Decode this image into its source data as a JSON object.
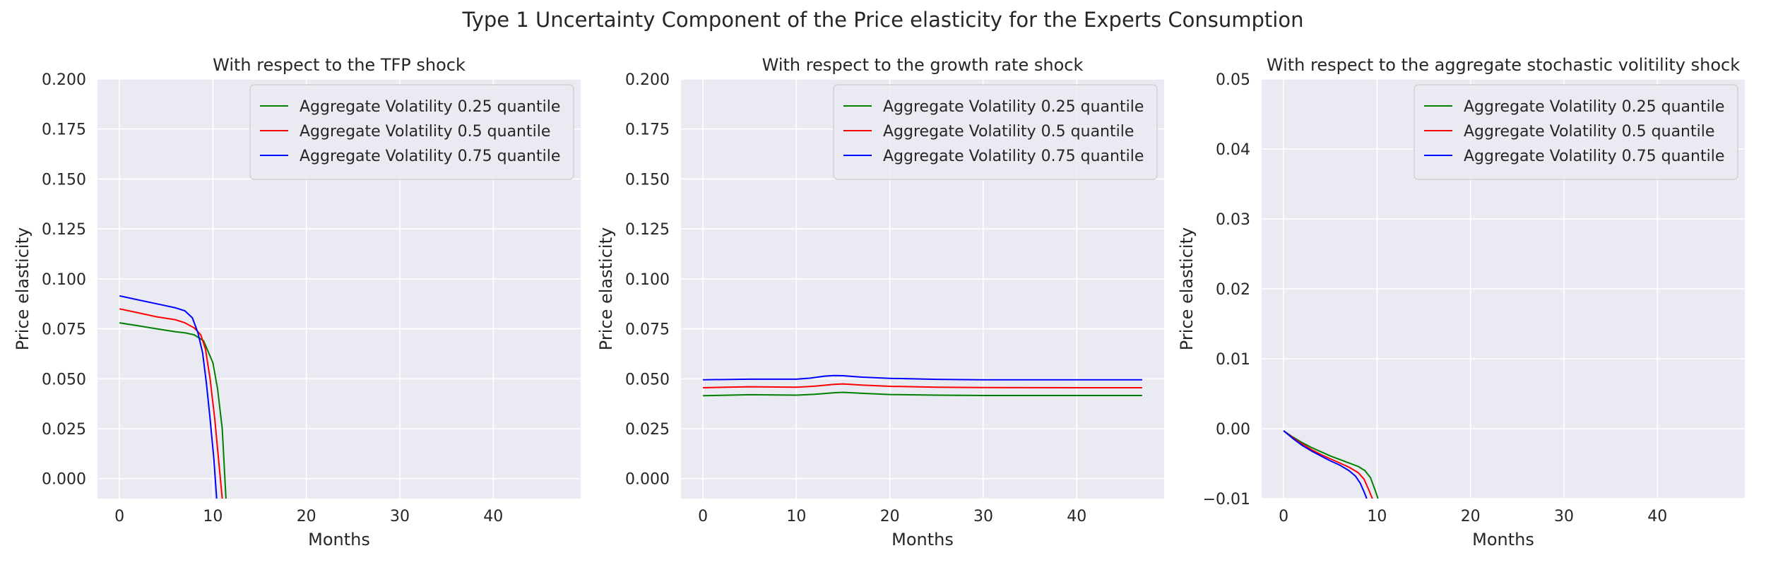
{
  "figure": {
    "suptitle": "Type 1 Uncertainty Component of the Price elasticity for the Experts Consumption"
  },
  "colors": {
    "background": "#eaeaf2",
    "grid": "#ffffff",
    "q25": "#008000",
    "q50": "#ff0000",
    "q75": "#0000ff",
    "legend_bg": "#eaeaf2",
    "legend_border": "#cccccc"
  },
  "chart_data": [
    {
      "type": "line",
      "title": "With respect to the TFP shock",
      "xlabel": "Months",
      "ylabel": "Price elasticity",
      "xlim": [
        -2.35,
        49.35
      ],
      "ylim": [
        -0.01,
        0.2
      ],
      "xticks": [
        0,
        10,
        20,
        30,
        40
      ],
      "xtick_labels": [
        "0",
        "10",
        "20",
        "30",
        "40"
      ],
      "yticks": [
        0.0,
        0.025,
        0.05,
        0.075,
        0.1,
        0.125,
        0.15,
        0.175,
        0.2
      ],
      "ytick_labels": [
        "0.000",
        "0.025",
        "0.050",
        "0.075",
        "0.100",
        "0.125",
        "0.150",
        "0.175",
        "0.200"
      ],
      "grid": true,
      "legend_position": "top-right",
      "series": [
        {
          "name": "Aggregate Volatility 0.25 quantile",
          "color_key": "q25",
          "x": [
            0,
            2,
            4,
            6,
            7,
            8,
            9,
            10,
            10.5,
            11,
            11.4
          ],
          "y": [
            0.078,
            0.0765,
            0.075,
            0.0735,
            0.073,
            0.072,
            0.069,
            0.058,
            0.045,
            0.025,
            -0.01
          ]
        },
        {
          "name": "Aggregate Volatility 0.5 quantile",
          "color_key": "q50",
          "x": [
            0,
            2,
            4,
            6,
            7,
            8,
            8.7,
            9.2,
            9.7,
            10.2,
            10.6,
            11.0
          ],
          "y": [
            0.085,
            0.083,
            0.081,
            0.0795,
            0.078,
            0.0755,
            0.072,
            0.065,
            0.05,
            0.03,
            0.01,
            -0.01
          ]
        },
        {
          "name": "Aggregate Volatility 0.75 quantile",
          "color_key": "q75",
          "x": [
            0,
            2,
            4,
            6,
            7,
            7.8,
            8.4,
            8.9,
            9.3,
            9.7,
            10.1,
            10.4
          ],
          "y": [
            0.0915,
            0.0895,
            0.0875,
            0.0855,
            0.084,
            0.0805,
            0.073,
            0.063,
            0.048,
            0.03,
            0.01,
            -0.01
          ]
        }
      ]
    },
    {
      "type": "line",
      "title": "With respect to the growth rate shock",
      "xlabel": "Months",
      "ylabel": "Price elasticity",
      "xlim": [
        -2.35,
        49.35
      ],
      "ylim": [
        -0.01,
        0.2
      ],
      "xticks": [
        0,
        10,
        20,
        30,
        40
      ],
      "xtick_labels": [
        "0",
        "10",
        "20",
        "30",
        "40"
      ],
      "yticks": [
        0.0,
        0.025,
        0.05,
        0.075,
        0.1,
        0.125,
        0.15,
        0.175,
        0.2
      ],
      "ytick_labels": [
        "0.000",
        "0.025",
        "0.050",
        "0.075",
        "0.100",
        "0.125",
        "0.150",
        "0.175",
        "0.200"
      ],
      "grid": true,
      "legend_position": "top-right",
      "series": [
        {
          "name": "Aggregate Volatility 0.25 quantile",
          "color_key": "q25",
          "x": [
            0,
            5,
            10,
            12,
            14,
            15,
            17,
            20,
            25,
            30,
            40,
            47
          ],
          "y": [
            0.0415,
            0.042,
            0.0418,
            0.0422,
            0.043,
            0.0432,
            0.0427,
            0.0421,
            0.0418,
            0.0416,
            0.0416,
            0.0416
          ]
        },
        {
          "name": "Aggregate Volatility 0.5 quantile",
          "color_key": "q50",
          "x": [
            0,
            5,
            10,
            12,
            14,
            15,
            17,
            20,
            25,
            30,
            40,
            47
          ],
          "y": [
            0.0455,
            0.046,
            0.0458,
            0.0463,
            0.0472,
            0.0474,
            0.0468,
            0.0462,
            0.0458,
            0.0456,
            0.0455,
            0.0455
          ]
        },
        {
          "name": "Aggregate Volatility 0.75 quantile",
          "color_key": "q75",
          "x": [
            0,
            5,
            10,
            11.5,
            13,
            14,
            15,
            17,
            20,
            25,
            30,
            40,
            47
          ],
          "y": [
            0.0495,
            0.0498,
            0.0498,
            0.0503,
            0.0513,
            0.0516,
            0.0515,
            0.0508,
            0.0502,
            0.0497,
            0.0495,
            0.0495,
            0.0495
          ]
        }
      ]
    },
    {
      "type": "line",
      "title": "With respect to the aggregate stochastic volitility shock",
      "xlabel": "Months",
      "ylabel": "Price elasticity",
      "xlim": [
        -2.35,
        49.35
      ],
      "ylim": [
        -0.01,
        0.05
      ],
      "xticks": [
        0,
        10,
        20,
        30,
        40
      ],
      "xtick_labels": [
        "0",
        "10",
        "20",
        "30",
        "40"
      ],
      "yticks": [
        -0.01,
        0.0,
        0.01,
        0.02,
        0.03,
        0.04,
        0.05
      ],
      "ytick_labels": [
        "−0.01",
        "0.00",
        "0.01",
        "0.02",
        "0.03",
        "0.04",
        "0.05"
      ],
      "grid": true,
      "legend_position": "top-right",
      "series": [
        {
          "name": "Aggregate Volatility 0.25 quantile",
          "color_key": "q25",
          "x": [
            0,
            1,
            2,
            3,
            4,
            5,
            6,
            7,
            8,
            8.7,
            9.3,
            9.8,
            10.1
          ],
          "y": [
            -0.0003,
            -0.0012,
            -0.002,
            -0.0027,
            -0.0033,
            -0.0039,
            -0.0044,
            -0.0049,
            -0.0054,
            -0.006,
            -0.007,
            -0.0088,
            -0.01
          ]
        },
        {
          "name": "Aggregate Volatility 0.5 quantile",
          "color_key": "q50",
          "x": [
            0,
            1,
            2,
            3,
            4,
            5,
            6,
            7,
            8,
            8.6,
            9.1,
            9.5
          ],
          "y": [
            -0.0003,
            -0.0013,
            -0.0022,
            -0.003,
            -0.0037,
            -0.0043,
            -0.0049,
            -0.0055,
            -0.0063,
            -0.0072,
            -0.0087,
            -0.01
          ]
        },
        {
          "name": "Aggregate Volatility 0.75 quantile",
          "color_key": "q75",
          "x": [
            0,
            1,
            2,
            3,
            4,
            5,
            6,
            7,
            7.7,
            8.2,
            8.6,
            8.9
          ],
          "y": [
            -0.0003,
            -0.0014,
            -0.0024,
            -0.0032,
            -0.0039,
            -0.0046,
            -0.0052,
            -0.006,
            -0.0068,
            -0.0078,
            -0.009,
            -0.01
          ]
        }
      ]
    }
  ]
}
